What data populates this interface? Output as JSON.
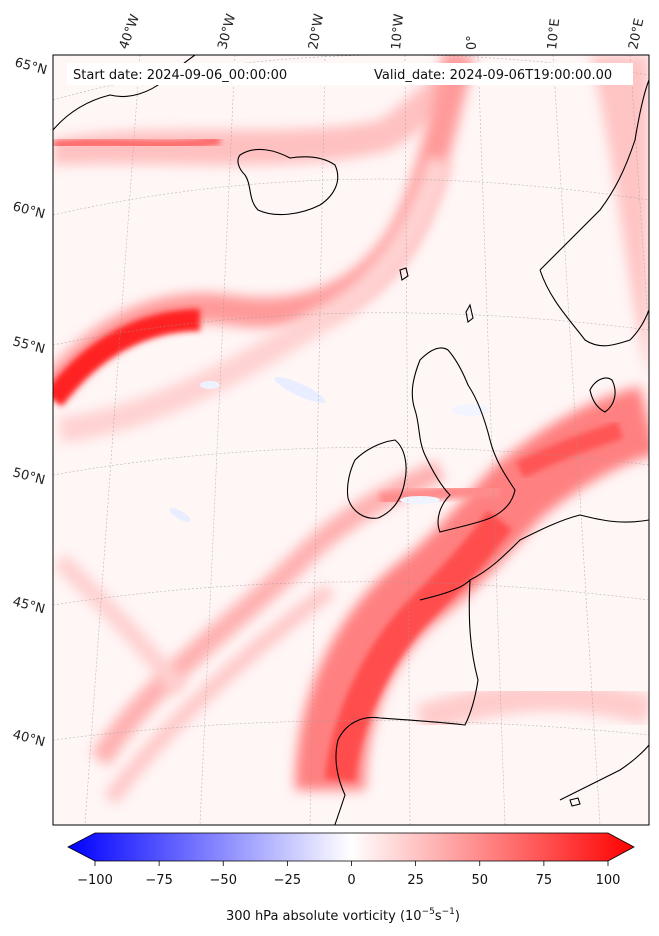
{
  "map": {
    "start_date": "Start date: 2024-09-06_00:00:00",
    "valid_date": "Valid_date: 2024-09-06T19:00:00.00",
    "lon_labels": [
      "40°W",
      "30°W",
      "20°W",
      "10°W",
      "0°",
      "10°E",
      "20°E"
    ],
    "lat_labels": [
      "65°N",
      "60°N",
      "55°N",
      "50°N",
      "45°N",
      "40°N"
    ]
  },
  "colorbar": {
    "label": "300 hPa absolute vorticity (10",
    "label_sup": "−5",
    "label_unit": "s",
    "label_sup2": "−1",
    "label_end": ")",
    "ticks": [
      "−100",
      "−75",
      "−50",
      "−25",
      "0",
      "25",
      "50",
      "75",
      "100"
    ],
    "min": -100,
    "max": 100,
    "colors": {
      "low": "#0000ff",
      "mid": "#ffffff",
      "high": "#ff0000"
    }
  }
}
